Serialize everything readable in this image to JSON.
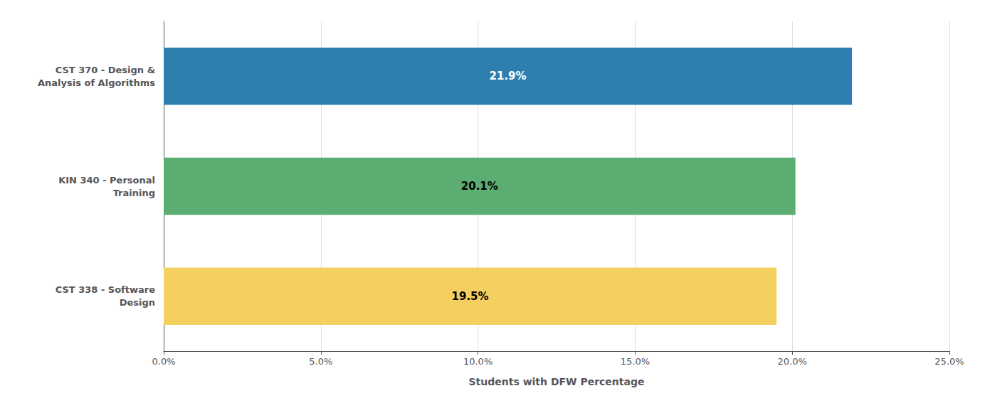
{
  "chart_data": {
    "type": "bar",
    "orientation": "horizontal",
    "xlabel": "Students with DFW Percentage",
    "categories": [
      "CST 338 - Software\nDesign",
      "KIN 340 - Personal\nTraining",
      "CST 370 - Design &\nAnalysis of Algorithms"
    ],
    "values": [
      0.195,
      0.201,
      0.219
    ],
    "value_labels": [
      "19.5%",
      "20.1%",
      "21.9%"
    ],
    "colors": [
      "#F5D060",
      "#5BAD72",
      "#2E7FB0"
    ],
    "data_labels": true,
    "xlim": [
      0,
      0.25
    ],
    "xticks": [
      {
        "value": 0.0,
        "label": "0.0%"
      },
      {
        "value": 0.05,
        "label": "5.0%"
      },
      {
        "value": 0.1,
        "label": "10.0%"
      },
      {
        "value": 0.15,
        "label": "15.0%"
      },
      {
        "value": 0.2,
        "label": "20.0%"
      },
      {
        "value": 0.25,
        "label": "25.0%"
      }
    ],
    "grid": true
  }
}
